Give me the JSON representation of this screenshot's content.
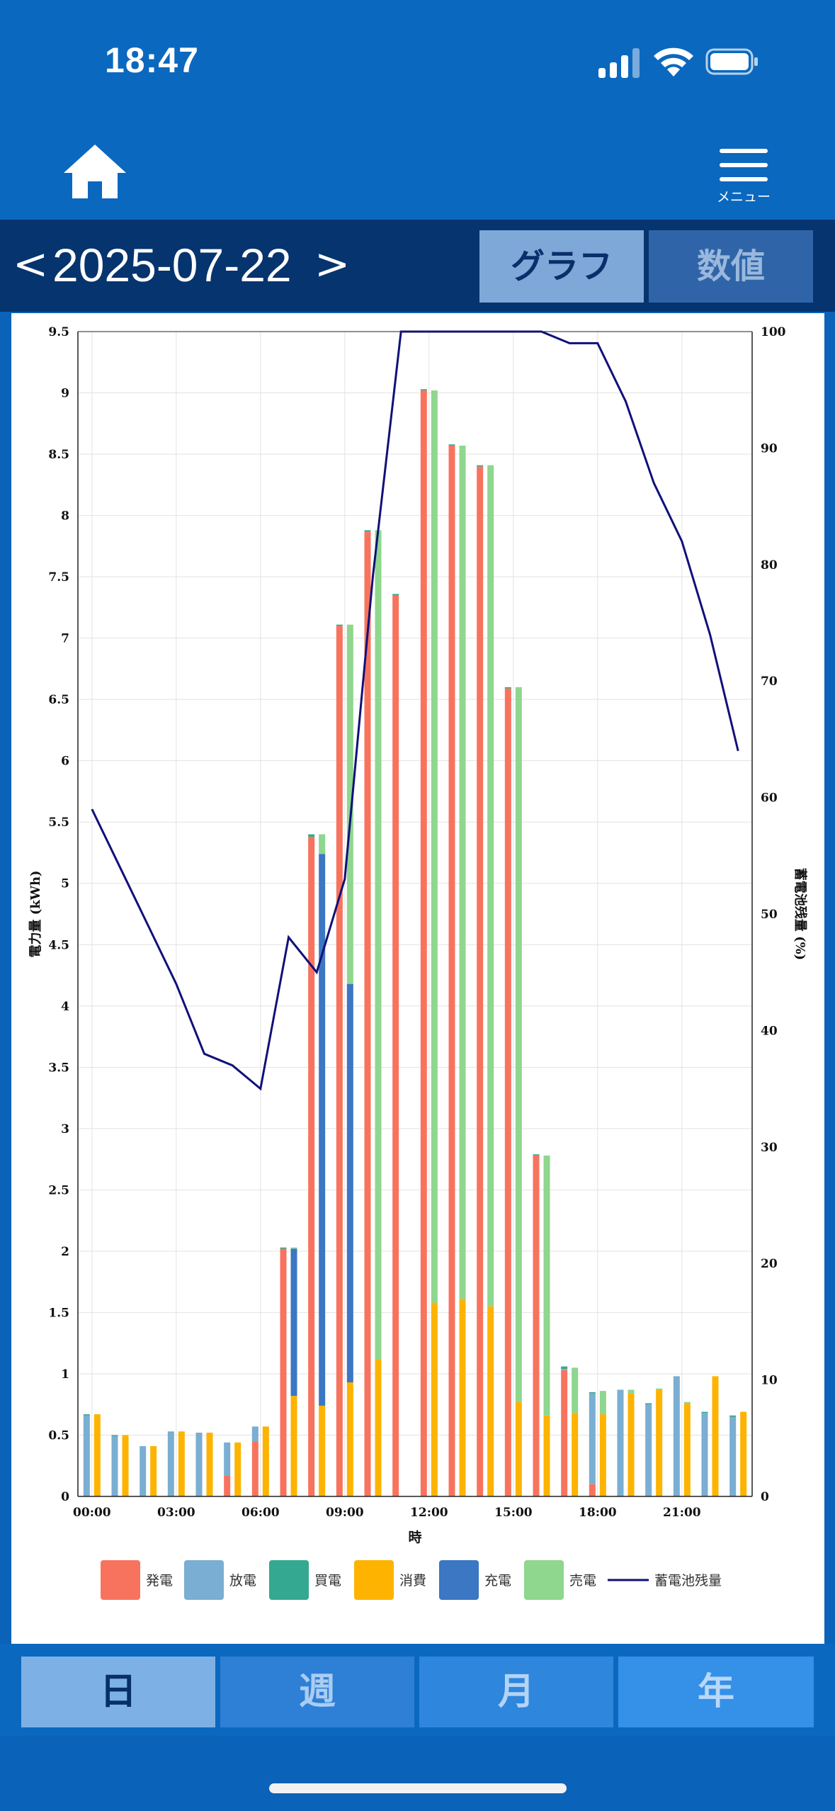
{
  "status": {
    "time": "18:47"
  },
  "nav": {
    "menu_label": "メニュー"
  },
  "date_nav": {
    "prev": "<",
    "date": "2025-07-22",
    "next": ">"
  },
  "view_tabs": {
    "graph": "グラフ",
    "values": "数値",
    "active": "graph"
  },
  "period_tabs": {
    "day": "日",
    "week": "週",
    "month": "月",
    "year": "年",
    "active": "day"
  },
  "colors": {
    "header_bg": "#0b68bf",
    "date_bg": "#06346e",
    "generation": "#f8735e",
    "discharge": "#7aaed2",
    "purchase": "#35a891",
    "consumption": "#fdb300",
    "charge": "#3b77c2",
    "sale": "#8fd68e",
    "battery_line": "#10107a"
  },
  "chart_data": {
    "type": "bar",
    "stacked": true,
    "xlabel": "時",
    "ylabel": "電力量 (kWh)",
    "y2label": "蓄電池残量 (%)",
    "ylim": [
      0,
      9.5
    ],
    "y2lim": [
      0,
      100
    ],
    "yticks": [
      "0",
      "0.5",
      "1",
      "1.5",
      "2",
      "2.5",
      "3",
      "3.5",
      "4",
      "4.5",
      "5",
      "5.5",
      "6",
      "6.5",
      "7",
      "7.5",
      "8",
      "8.5",
      "9",
      "9.5"
    ],
    "y2ticks": [
      "0",
      "10",
      "20",
      "30",
      "40",
      "50",
      "60",
      "70",
      "80",
      "90",
      "100"
    ],
    "xticks": [
      "00:00",
      "03:00",
      "06:00",
      "09:00",
      "12:00",
      "15:00",
      "18:00",
      "21:00"
    ],
    "grid": true,
    "legend_position": "bottom",
    "hours": [
      0,
      1,
      2,
      3,
      4,
      5,
      6,
      7,
      8,
      9,
      10,
      11,
      12,
      13,
      14,
      15,
      16,
      17,
      18,
      19,
      20,
      21,
      22,
      23
    ],
    "legend": [
      {
        "key": "generation",
        "label": "発電"
      },
      {
        "key": "discharge",
        "label": "放電"
      },
      {
        "key": "purchase",
        "label": "買電"
      },
      {
        "key": "consumption",
        "label": "消費"
      },
      {
        "key": "charge",
        "label": "充電"
      },
      {
        "key": "sale",
        "label": "売電"
      },
      {
        "key": "battery_line",
        "label": "蓄電池残量"
      }
    ],
    "source_series": [
      {
        "key": "generation",
        "values": [
          0,
          0,
          0,
          0,
          0,
          0.17,
          0.45,
          2.02,
          5.38,
          7.1,
          7.87,
          7.35,
          9.02,
          8.57,
          8.4,
          6.59,
          2.78,
          1.03,
          0.1,
          0,
          0,
          0,
          0,
          0
        ]
      },
      {
        "key": "discharge",
        "values": [
          0.66,
          0.49,
          0.41,
          0.53,
          0.52,
          0.27,
          0.12,
          0,
          0,
          0,
          0,
          0,
          0,
          0,
          0,
          0,
          0,
          0.01,
          0.74,
          0.87,
          0.75,
          0.98,
          0.68,
          0.65
        ]
      },
      {
        "key": "purchase",
        "values": [
          0.01,
          0.01,
          0,
          0,
          0,
          0,
          0,
          0.01,
          0.02,
          0.01,
          0.01,
          0.01,
          0.01,
          0.01,
          0.01,
          0.01,
          0.01,
          0.02,
          0.01,
          0,
          0.01,
          0,
          0.01,
          0.01
        ]
      }
    ],
    "use_series": [
      {
        "key": "consumption",
        "values": [
          0.67,
          0.5,
          0.41,
          0.53,
          0.52,
          0.44,
          0.57,
          0.82,
          0.74,
          0.93,
          1.12,
          0,
          1.58,
          1.61,
          1.55,
          0.77,
          0.66,
          0.68,
          0.67,
          0.84,
          0.87,
          0.76,
          0.98,
          0.69
        ]
      },
      {
        "key": "charge",
        "values": [
          0,
          0,
          0,
          0,
          0,
          0,
          0,
          1.2,
          4.5,
          3.25,
          0,
          0,
          0,
          0,
          0,
          0,
          0,
          0,
          0,
          0,
          0,
          0,
          0,
          0
        ]
      },
      {
        "key": "sale",
        "values": [
          0,
          0,
          0,
          0,
          0,
          0,
          0,
          0.01,
          0.16,
          2.93,
          6.76,
          0,
          7.44,
          6.96,
          6.86,
          5.83,
          2.12,
          0.37,
          0.19,
          0.03,
          0.01,
          0.01,
          0,
          0
        ]
      }
    ],
    "battery_pct": [
      64,
      59,
      54,
      49,
      44,
      38,
      37,
      35,
      48,
      45,
      53,
      79,
      100,
      100,
      100,
      100,
      100,
      100,
      99,
      99,
      94,
      87,
      82,
      74,
      64
    ]
  }
}
